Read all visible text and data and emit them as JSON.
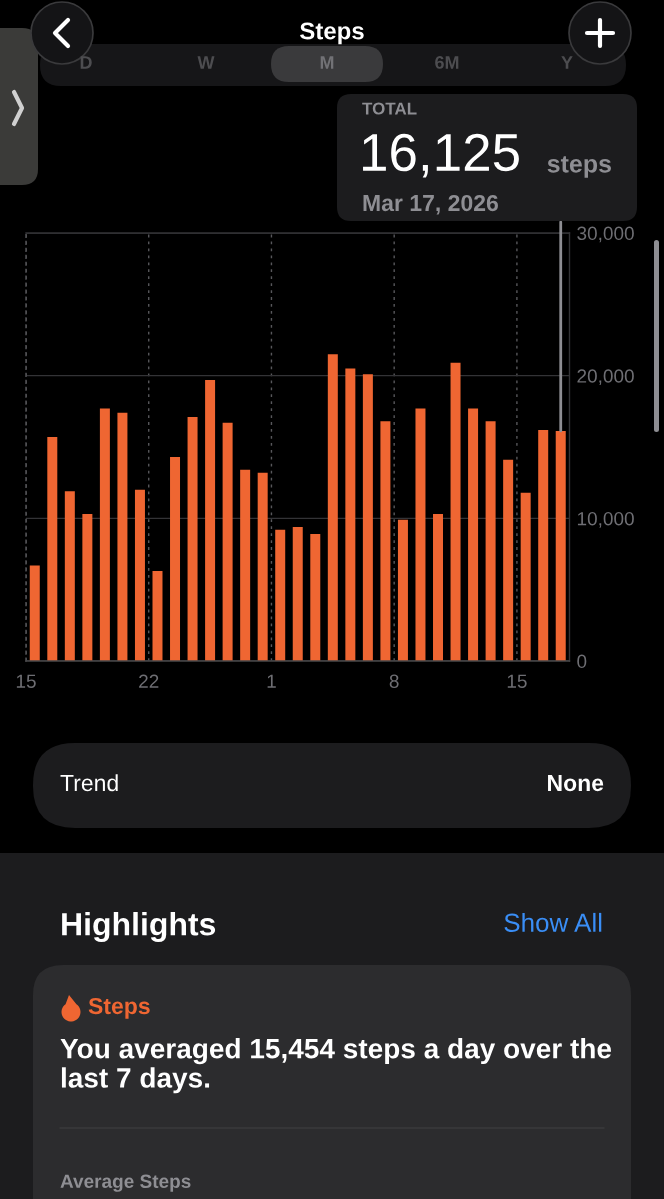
{
  "chart_data": {
    "type": "bar",
    "title": "Steps",
    "x": [
      "2026-02-15T12:00",
      "2026-02-16T12:00",
      "2026-02-17T12:00",
      "2026-02-18T12:00",
      "2026-02-19T12:00",
      "2026-02-20T12:00",
      "2026-02-21T12:00",
      "2026-02-22T12:00",
      "2026-02-23T12:00",
      "2026-02-24T12:00",
      "2026-02-25T12:00",
      "2026-02-26T12:00",
      "2026-02-27T12:00",
      "2026-02-28T12:00",
      "2026-03-01T12:00",
      "2026-03-02T12:00",
      "2026-03-03T12:00",
      "2026-03-04T12:00",
      "2026-03-05T12:00",
      "2026-03-06T12:00",
      "2026-03-07T12:00",
      "2026-03-08T12:00",
      "2026-03-09T12:00",
      "2026-03-10T12:00",
      "2026-03-11T12:00",
      "2026-03-12T12:00",
      "2026-03-13T12:00",
      "2026-03-14T12:00",
      "2026-03-15T12:00",
      "2026-03-16T12:00",
      "2026-03-17T12:00"
    ],
    "values": [
      6700,
      15700,
      11900,
      10300,
      17700,
      17400,
      12000,
      6300,
      14300,
      17100,
      19700,
      16700,
      13400,
      13200,
      9200,
      9400,
      8900,
      21500,
      20500,
      20100,
      16800,
      9900,
      17700,
      10300,
      20900,
      17700,
      16800,
      14100,
      11800,
      16200,
      16125
    ],
    "color": "#ef6632",
    "xlim": [
      "2026-02-15",
      "2026-03-18"
    ],
    "xticks": [
      {
        "value": "2026-02-15",
        "label": "15"
      },
      {
        "value": "2026-02-22",
        "label": "22"
      },
      {
        "value": "2026-03-01",
        "label": "1"
      },
      {
        "value": "2026-03-08",
        "label": "8"
      },
      {
        "value": "2026-03-15",
        "label": "15"
      }
    ],
    "ylim": [
      0,
      30000
    ],
    "yticks": [
      0,
      {
        "value": 10000,
        "label": "10,000"
      },
      {
        "value": 20000,
        "label": "20,000"
      },
      {
        "value": 30000,
        "label": "30,000"
      }
    ],
    "grid": true,
    "annotations": [
      {
        "text": "16,125",
        "x": "2026-03-17T12:00",
        "y": 16125
      },
      "TOTAL",
      "steps",
      "Mar 17, 2026",
      "D",
      "W",
      "M",
      "6M",
      "Y",
      "Trend",
      "None",
      "Highlights",
      "Show All",
      "Steps",
      "You averaged 15,454 steps a day over the last 7 days.",
      "Average Steps"
    ]
  }
}
